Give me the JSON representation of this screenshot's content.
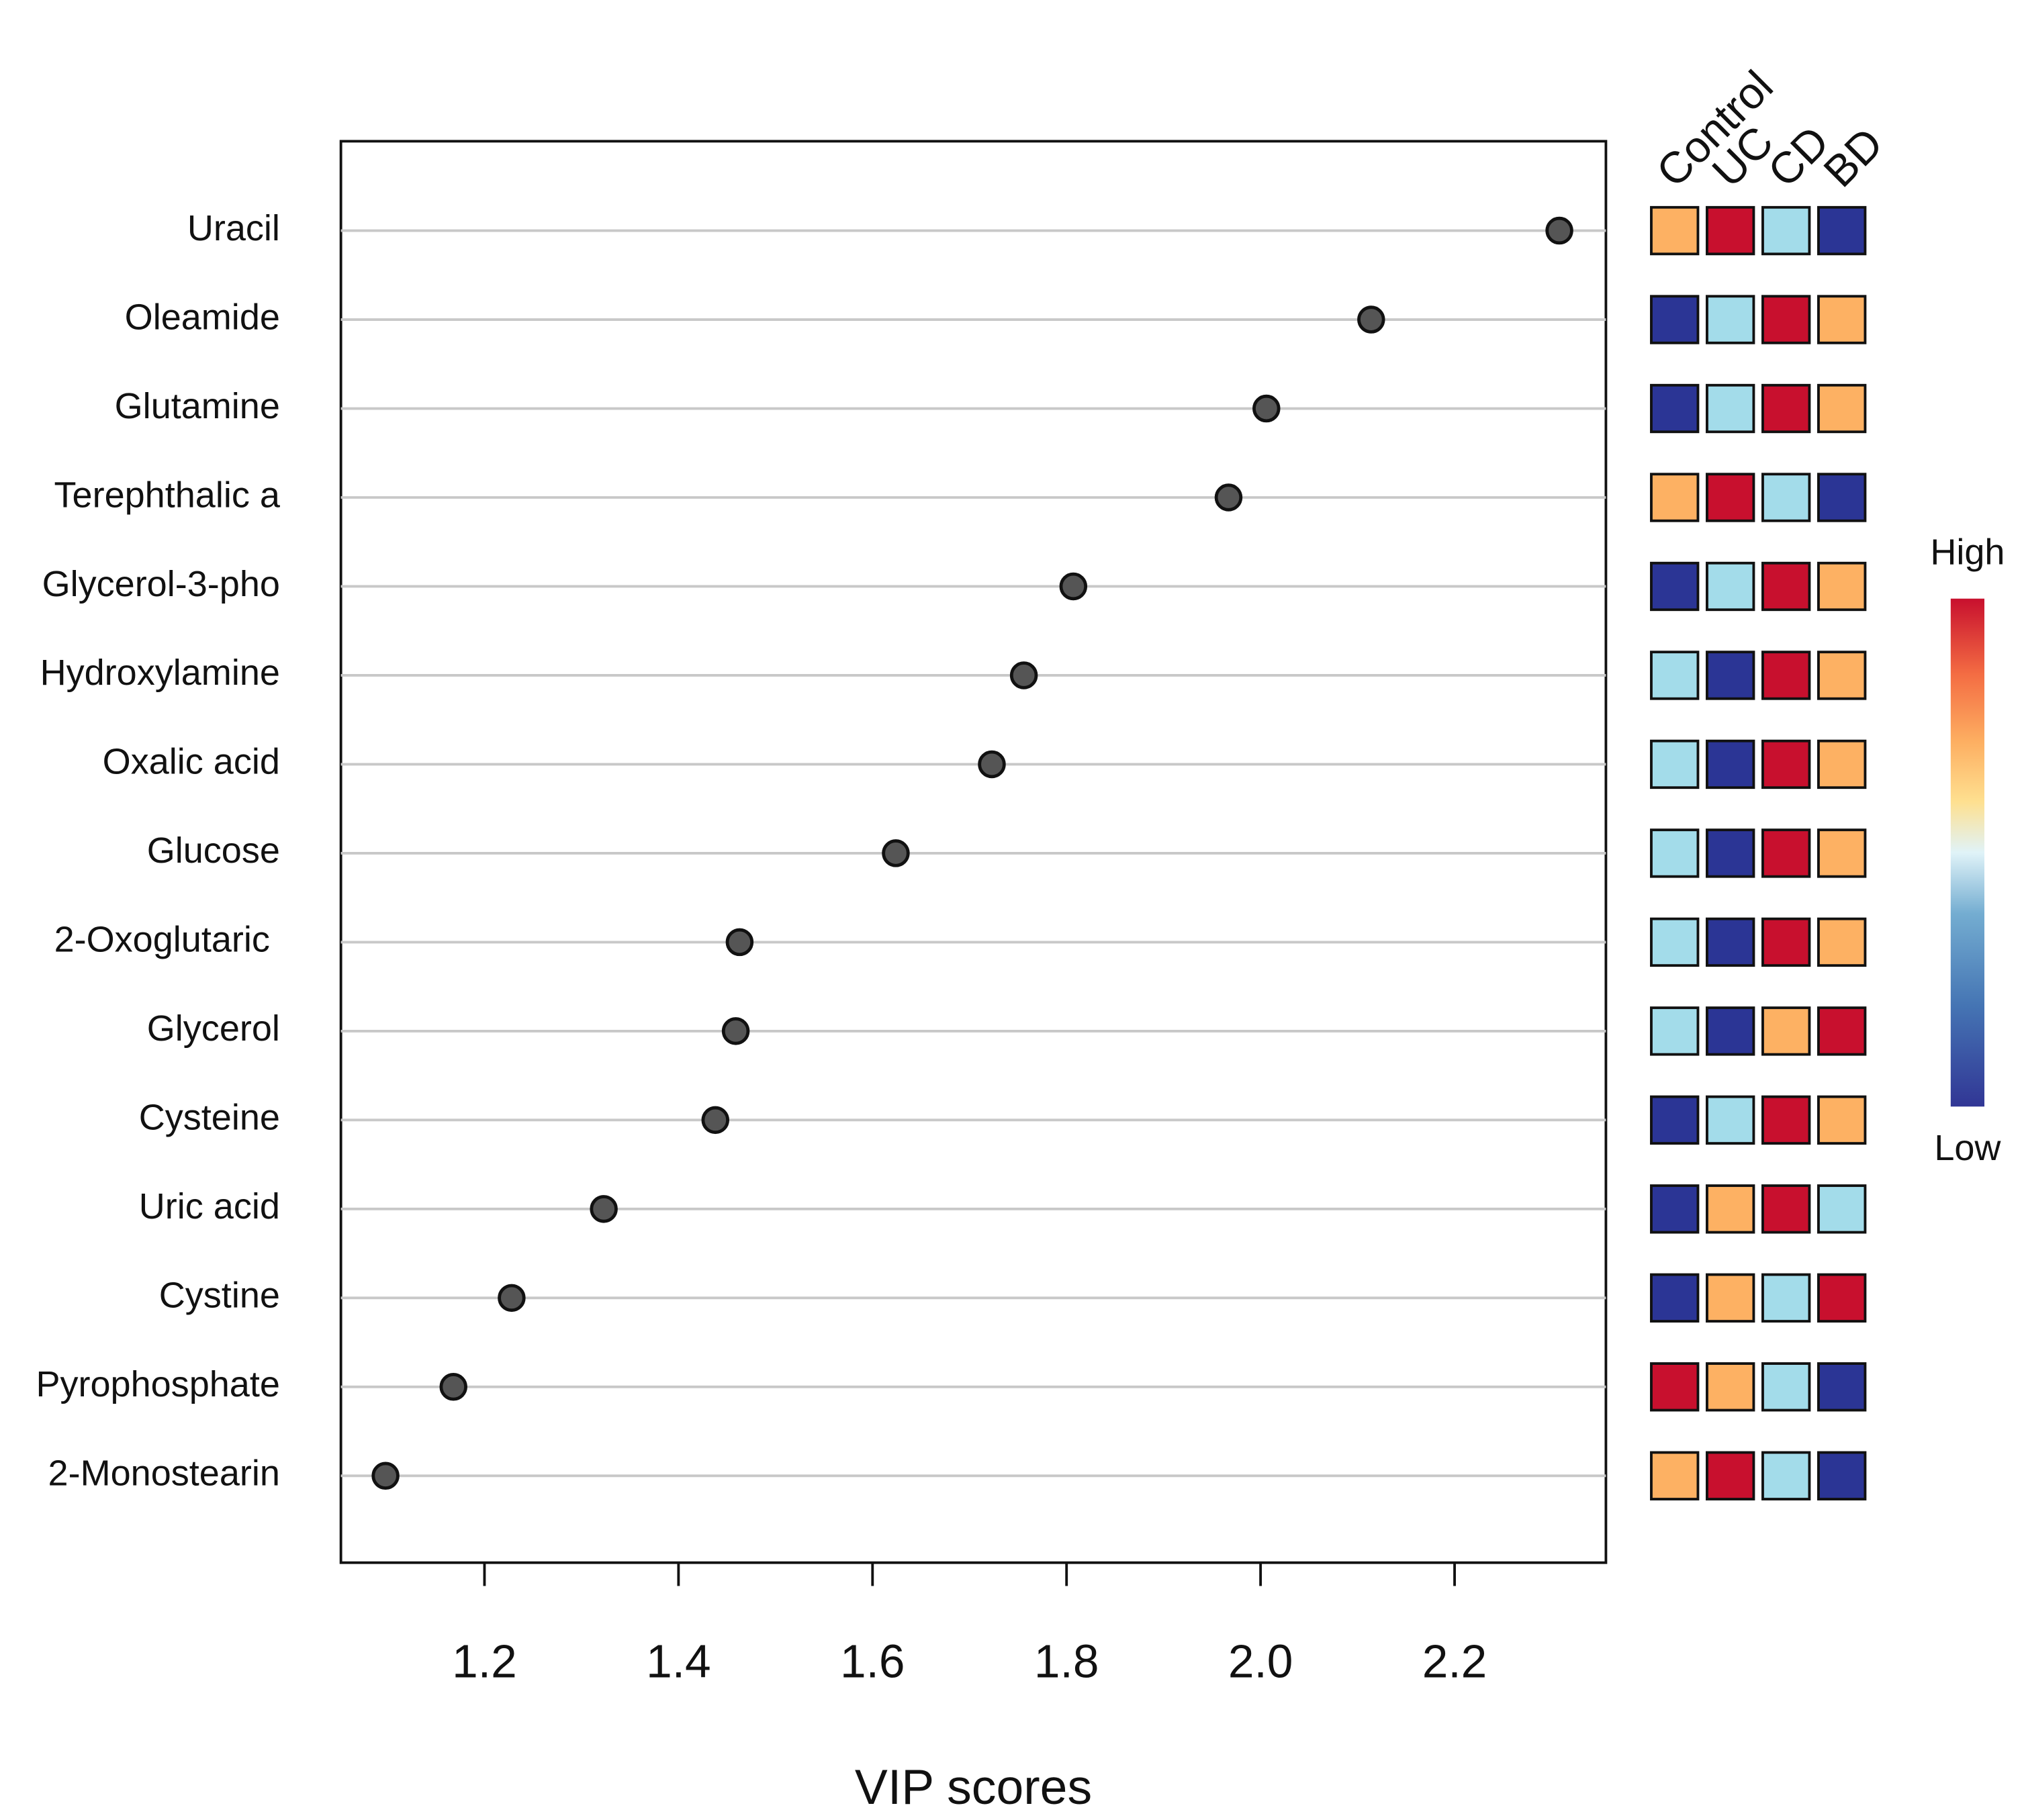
{
  "chart_data": {
    "type": "dot",
    "x_label": "VIP scores",
    "categories": [
      "Uracil",
      "Oleamide",
      "Glutamine",
      "Terephthalic a",
      "Glycerol-3-pho",
      "Hydroxylamine",
      "Oxalic acid",
      "Glucose",
      "2-Oxoglutaric ",
      "Glycerol",
      "Cysteine",
      "Uric acid",
      "Cystine",
      "Pyrophosphate",
      "2-Monostearin"
    ],
    "values": [
      2.308,
      2.114,
      2.006,
      1.967,
      1.807,
      1.756,
      1.723,
      1.624,
      1.463,
      1.459,
      1.438,
      1.323,
      1.228,
      1.168,
      1.098
    ],
    "color": "#555555",
    "xlim": [
      1.052,
      2.356
    ],
    "xticks": [
      {
        "value": 1.2,
        "label": "1.2"
      },
      {
        "value": 1.4,
        "label": "1.4"
      },
      {
        "value": 1.6,
        "label": "1.6"
      },
      {
        "value": 1.8,
        "label": "1.8"
      },
      {
        "value": 2.0,
        "label": "2.0"
      },
      {
        "value": 2.2,
        "label": "2.2"
      }
    ],
    "heatmap": {
      "columns": [
        "Control",
        "UC",
        "CD",
        "BD"
      ],
      "colors": [
        "#2b3595",
        "#a3dcea",
        "#fdb163",
        "#c8102e"
      ],
      "legend_high": "High",
      "legend_low": "Low",
      "values": [
        [
          3,
          4,
          2,
          1
        ],
        [
          1,
          2,
          4,
          3
        ],
        [
          1,
          2,
          4,
          3
        ],
        [
          3,
          4,
          2,
          1
        ],
        [
          1,
          2,
          4,
          3
        ],
        [
          2,
          1,
          4,
          3
        ],
        [
          2,
          1,
          4,
          3
        ],
        [
          2,
          1,
          4,
          3
        ],
        [
          2,
          1,
          4,
          3
        ],
        [
          2,
          1,
          3,
          4
        ],
        [
          1,
          2,
          4,
          3
        ],
        [
          1,
          3,
          4,
          2
        ],
        [
          1,
          3,
          2,
          4
        ],
        [
          4,
          3,
          2,
          1
        ],
        [
          3,
          4,
          2,
          1
        ]
      ]
    }
  }
}
